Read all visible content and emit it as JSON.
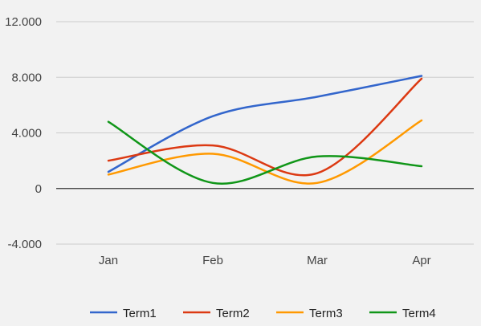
{
  "chart_data": {
    "type": "line",
    "categories": [
      "Jan",
      "Feb",
      "Mar",
      "Apr"
    ],
    "yticks": [
      "-4.000",
      "0",
      "4.000",
      "8.000",
      "12.000"
    ],
    "ytick_values": [
      -4000,
      0,
      4000,
      8000,
      12000
    ],
    "ylim": [
      -4000,
      12000
    ],
    "grid": true,
    "legend_position": "bottom",
    "smooth": true,
    "series": [
      {
        "name": "Term1",
        "color": "#3366cc",
        "values": [
          1200,
          5200,
          6600,
          8100
        ]
      },
      {
        "name": "Term2",
        "color": "#dc3912",
        "values": [
          2000,
          3100,
          1100,
          7900
        ]
      },
      {
        "name": "Term3",
        "color": "#ff9900",
        "values": [
          1000,
          2500,
          400,
          4900
        ]
      },
      {
        "name": "Term4",
        "color": "#109618",
        "values": [
          4800,
          400,
          2300,
          1600
        ]
      }
    ]
  }
}
